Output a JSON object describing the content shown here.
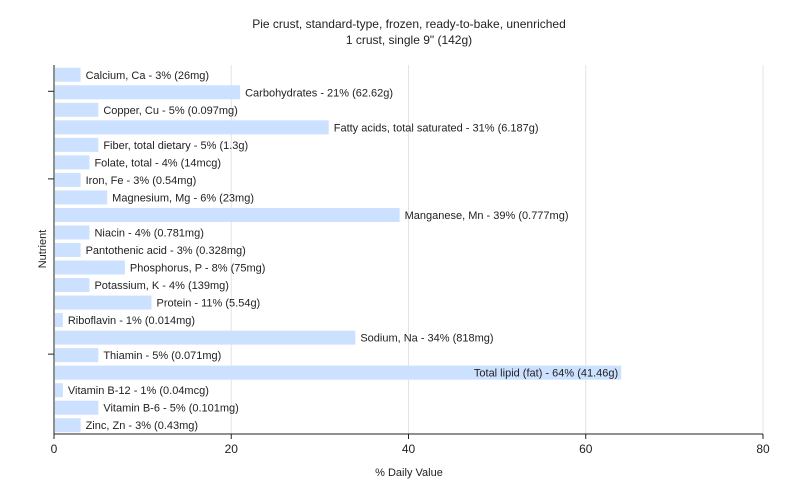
{
  "chart_data": {
    "type": "bar",
    "orientation": "horizontal",
    "title": "Pie crust, standard-type, frozen, ready-to-bake, unenriched",
    "subtitle": "1 crust, single 9\" (142g)",
    "xlabel": "% Daily Value",
    "ylabel": "Nutrient",
    "xlim": [
      0,
      80
    ],
    "xticks": [
      "0",
      "20",
      "40",
      "60",
      "80"
    ],
    "grid": "vertical",
    "bar_color": "#cce0ff",
    "categories": [
      "Calcium, Ca",
      "Carbohydrates",
      "Copper, Cu",
      "Fatty acids, total saturated",
      "Fiber, total dietary",
      "Folate, total",
      "Iron, Fe",
      "Magnesium, Mg",
      "Manganese, Mn",
      "Niacin",
      "Pantothenic acid",
      "Phosphorus, P",
      "Potassium, K",
      "Protein",
      "Riboflavin",
      "Sodium, Na",
      "Thiamin",
      "Total lipid (fat)",
      "Vitamin B-12",
      "Vitamin B-6",
      "Zinc, Zn"
    ],
    "values": [
      3,
      21,
      5,
      31,
      5,
      4,
      3,
      6,
      39,
      4,
      3,
      8,
      4,
      11,
      1,
      34,
      5,
      64,
      1,
      5,
      3
    ],
    "labels": [
      "Calcium, Ca - 3% (26mg)",
      "Carbohydrates - 21% (62.62g)",
      "Copper, Cu - 5% (0.097mg)",
      "Fatty acids, total saturated - 31% (6.187g)",
      "Fiber, total dietary - 5% (1.3g)",
      "Folate, total - 4% (14mcg)",
      "Iron, Fe - 3% (0.54mg)",
      "Magnesium, Mg - 6% (23mg)",
      "Manganese, Mn - 39% (0.777mg)",
      "Niacin - 4% (0.781mg)",
      "Pantothenic acid - 3% (0.328mg)",
      "Phosphorus, P - 8% (75mg)",
      "Potassium, K - 4% (139mg)",
      "Protein - 11% (5.54g)",
      "Riboflavin - 1% (0.014mg)",
      "Sodium, Na - 34% (818mg)",
      "Thiamin - 5% (0.071mg)",
      "Total lipid (fat) - 64% (41.46g)",
      "Vitamin B-12 - 1% (0.04mcg)",
      "Vitamin B-6 - 5% (0.101mg)",
      "Zinc, Zn - 3% (0.43mg)"
    ]
  }
}
